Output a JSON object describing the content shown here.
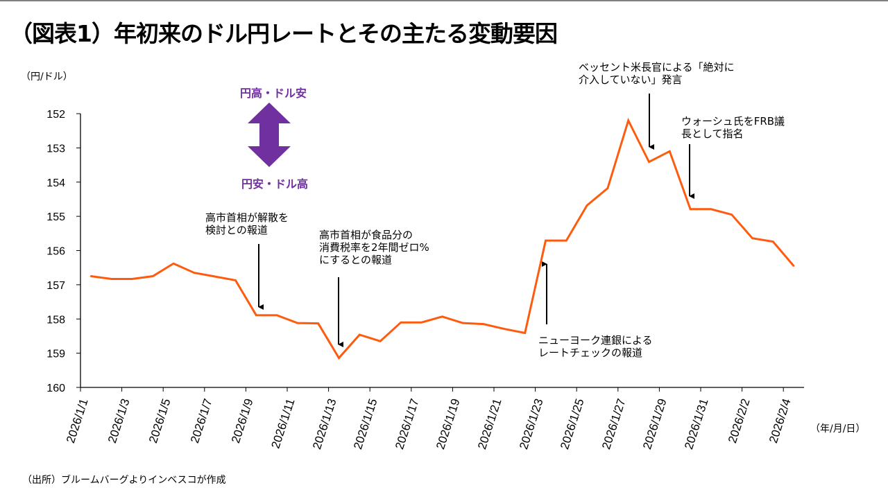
{
  "title": "（図表1）年初来のドル円レートとその主たる変動要因",
  "y_unit": "（円/ドル）",
  "x_unit": "（年/月/日）",
  "source": "（出所）ブルームバーグよりインベスコが作成",
  "direction": {
    "up_label": "円高・ドル安",
    "down_label": "円安・ドル高",
    "color": "#7030A0"
  },
  "annotations": [
    {
      "text": "高市首相が解散を\n検討との報道",
      "date": "2026/1/10"
    },
    {
      "text": "高市首相が食品分の\n消費税率を2年間ゼロ%\nにするとの報道",
      "date": "2026/1/14"
    },
    {
      "text": "ニューヨーク連銀による\nレートチェックの報道",
      "date": "2026/1/23"
    },
    {
      "text": "ベッセント米長官による「絶対に\n介入していない」発言",
      "date": "2026/1/29"
    },
    {
      "text": "ウォーシュ氏をFRB議\n長として指名",
      "date": "2026/1/31"
    }
  ],
  "chart_data": {
    "type": "line",
    "title": "",
    "xlabel": "（年/月/日）",
    "ylabel": "（円/ドル）",
    "ylim": [
      152,
      160
    ],
    "y_inverted": true,
    "y_ticks": [
      152,
      153,
      154,
      155,
      156,
      157,
      158,
      159,
      160
    ],
    "grid": false,
    "line_color": "#FF5B0F",
    "x": [
      "2026/1/1",
      "2026/1/2",
      "2026/1/3",
      "2026/1/4",
      "2026/1/5",
      "2026/1/6",
      "2026/1/7",
      "2026/1/8",
      "2026/1/9",
      "2026/1/10",
      "2026/1/11",
      "2026/1/12",
      "2026/1/13",
      "2026/1/14",
      "2026/1/15",
      "2026/1/16",
      "2026/1/17",
      "2026/1/18",
      "2026/1/19",
      "2026/1/20",
      "2026/1/21",
      "2026/1/22",
      "2026/1/23",
      "2026/1/24",
      "2026/1/25",
      "2026/1/26",
      "2026/1/27",
      "2026/1/28",
      "2026/1/29",
      "2026/1/30",
      "2026/1/31",
      "2026/2/1",
      "2026/2/2",
      "2026/2/3",
      "2026/2/4"
    ],
    "x_tick_labels": [
      "2026/1/1",
      "2026/1/3",
      "2026/1/5",
      "2026/1/7",
      "2026/1/9",
      "2026/1/11",
      "2026/1/13",
      "2026/1/15",
      "2026/1/17",
      "2026/1/19",
      "2026/1/21",
      "2026/1/23",
      "2026/1/25",
      "2026/1/27",
      "2026/1/29",
      "2026/1/31",
      "2026/2/2",
      "2026/2/4"
    ],
    "values": [
      156.75,
      156.83,
      156.83,
      156.75,
      156.38,
      156.65,
      156.76,
      156.87,
      157.89,
      157.89,
      158.12,
      158.13,
      159.14,
      158.46,
      158.65,
      158.1,
      158.1,
      157.93,
      158.12,
      158.15,
      158.29,
      158.41,
      155.71,
      155.71,
      154.68,
      154.18,
      152.2,
      153.41,
      153.1,
      154.79,
      154.79,
      154.95,
      155.64,
      155.74,
      156.45
    ]
  }
}
